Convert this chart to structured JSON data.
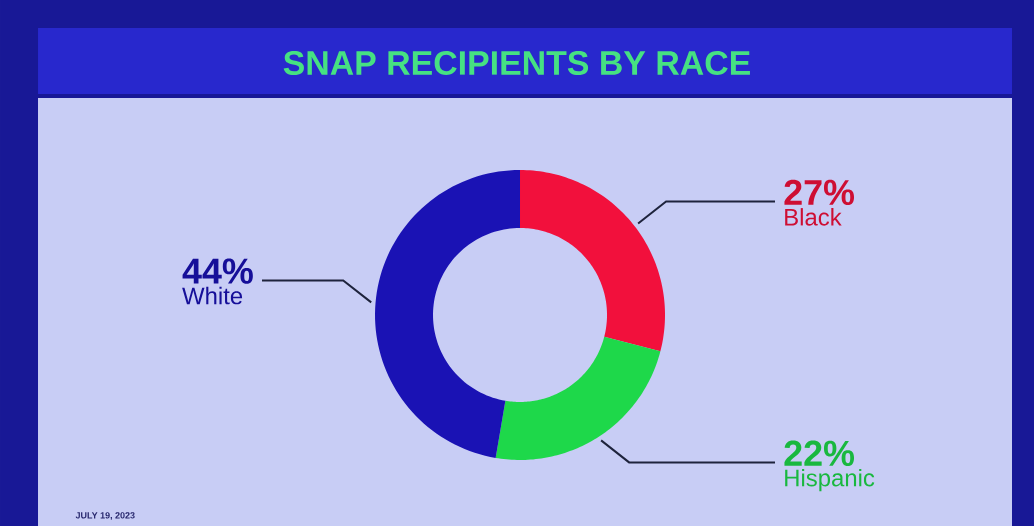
{
  "chart_data": {
    "type": "donut",
    "title": "SNAP RECIPIENTS BY RACE",
    "categories": [
      "Black",
      "Hispanic",
      "White"
    ],
    "values": [
      27,
      22,
      44
    ],
    "colors": [
      "#f2103c",
      "#1ed84a",
      "#1a12b4"
    ],
    "value_labels": [
      "27%",
      "22%",
      "44%"
    ],
    "annotations": [
      "JULY 19, 2023"
    ]
  }
}
